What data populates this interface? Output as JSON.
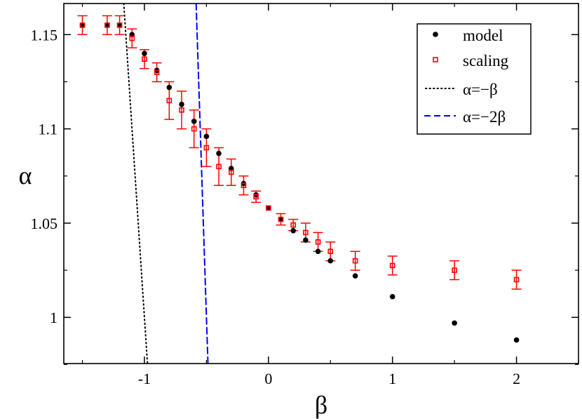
{
  "chart_data": {
    "type": "scatter",
    "title": "",
    "xlabel": "β",
    "ylabel": "α",
    "xlim": [
      -1.65,
      2.5
    ],
    "ylim": [
      0.9755,
      1.1665
    ],
    "grid": false,
    "legend_position": "top-right",
    "x_ticks": [
      {
        "value": -1,
        "label": "-1"
      },
      {
        "value": 0,
        "label": "0"
      },
      {
        "value": 1,
        "label": "1"
      },
      {
        "value": 2,
        "label": "2"
      }
    ],
    "y_ticks": [
      {
        "value": 1.0,
        "label": "1"
      },
      {
        "value": 1.05,
        "label": "1.05"
      },
      {
        "value": 1.1,
        "label": "1.1"
      },
      {
        "value": 1.15,
        "label": "1.15"
      }
    ],
    "series": [
      {
        "name": "model",
        "kind": "points",
        "color": "#000000",
        "x": [
          -1.5,
          -1.3,
          -1.2,
          -1.1,
          -1.0,
          -0.9,
          -0.8,
          -0.7,
          -0.6,
          -0.5,
          -0.4,
          -0.3,
          -0.2,
          -0.1,
          0.0,
          0.1,
          0.2,
          0.3,
          0.4,
          0.5,
          0.7,
          1.0,
          1.5,
          2.0
        ],
        "y": [
          1.155,
          1.155,
          1.155,
          1.15,
          1.14,
          1.131,
          1.122,
          1.113,
          1.104,
          1.096,
          1.087,
          1.079,
          1.071,
          1.065,
          1.058,
          1.052,
          1.046,
          1.041,
          1.035,
          1.03,
          1.022,
          1.011,
          0.997,
          0.988
        ]
      },
      {
        "name": "scaling",
        "kind": "points_with_errors",
        "color": "#ff0000",
        "x": [
          -1.5,
          -1.3,
          -1.2,
          -1.1,
          -1.0,
          -0.9,
          -0.8,
          -0.7,
          -0.6,
          -0.5,
          -0.4,
          -0.3,
          -0.2,
          -0.1,
          0.0,
          0.1,
          0.2,
          0.3,
          0.4,
          0.5,
          0.7,
          1.0,
          1.5,
          2.0
        ],
        "y": [
          1.155,
          1.155,
          1.155,
          1.148,
          1.137,
          1.13,
          1.115,
          1.11,
          1.1,
          1.09,
          1.08,
          1.077,
          1.07,
          1.064,
          1.058,
          1.052,
          1.049,
          1.045,
          1.04,
          1.035,
          1.03,
          1.0275,
          1.025,
          1.02
        ],
        "err": [
          0.005,
          0.005,
          0.005,
          0.005,
          0.005,
          0.005,
          0.01,
          0.01,
          0.01,
          0.01,
          0.01,
          0.007,
          0.005,
          0.003,
          0.0,
          0.003,
          0.003,
          0.005,
          0.005,
          0.005,
          0.005,
          0.005,
          0.005,
          0.005
        ]
      },
      {
        "name": "α=−β",
        "kind": "line",
        "style": "dotted",
        "color": "#000000",
        "x": [
          -1.1665,
          -0.9755
        ],
        "y": [
          1.1665,
          0.9755
        ]
      },
      {
        "name": "α=−2β",
        "kind": "line",
        "style": "dashed",
        "color": "#0000ff",
        "x": [
          -0.58325,
          -0.48775
        ],
        "y": [
          1.1665,
          0.9755
        ]
      }
    ]
  }
}
